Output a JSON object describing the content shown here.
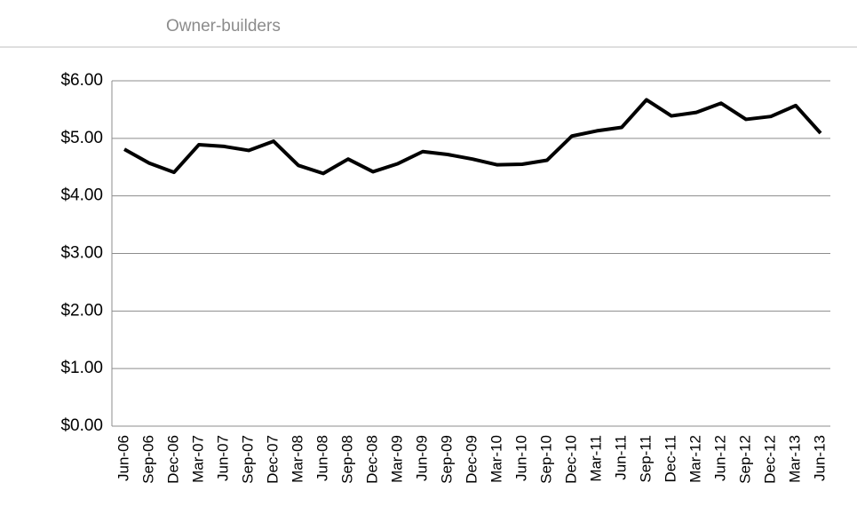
{
  "chart_data": {
    "type": "line",
    "title": "Owner-builders",
    "categories": [
      "Jun-06",
      "Sep-06",
      "Dec-06",
      "Mar-07",
      "Jun-07",
      "Sep-07",
      "Dec-07",
      "Mar-08",
      "Jun-08",
      "Sep-08",
      "Dec-08",
      "Mar-09",
      "Jun-09",
      "Sep-09",
      "Dec-09",
      "Mar-10",
      "Jun-10",
      "Sep-10",
      "Dec-10",
      "Mar-11",
      "Jun-11",
      "Sep-11",
      "Dec-11",
      "Mar-12",
      "Jun-12",
      "Sep-12",
      "Dec-12",
      "Mar-13",
      "Jun-13"
    ],
    "values": [
      4.81,
      4.57,
      4.41,
      4.89,
      4.86,
      4.79,
      4.95,
      4.53,
      4.39,
      4.64,
      4.42,
      4.56,
      4.77,
      4.72,
      4.64,
      4.54,
      4.55,
      4.62,
      5.04,
      5.13,
      5.19,
      5.67,
      5.39,
      5.45,
      5.61,
      5.33,
      5.38,
      5.57,
      5.09
    ],
    "color": "#000000",
    "ylim": [
      0,
      6
    ],
    "yticks": [
      {
        "value": 0,
        "label": "$0.00"
      },
      {
        "value": 1,
        "label": "$1.00"
      },
      {
        "value": 2,
        "label": "$2.00"
      },
      {
        "value": 3,
        "label": "$3.00"
      },
      {
        "value": 4,
        "label": "$4.00"
      },
      {
        "value": 5,
        "label": "$5.00"
      },
      {
        "value": 6,
        "label": "$6.00"
      }
    ],
    "grid": true
  }
}
